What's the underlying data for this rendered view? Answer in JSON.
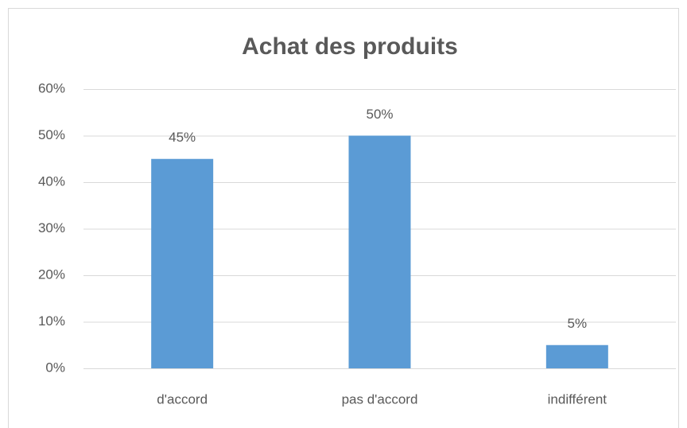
{
  "chart_data": {
    "type": "bar",
    "title": "Achat des produits",
    "categories": [
      "d'accord",
      "pas d'accord",
      "indifférent"
    ],
    "values": [
      45,
      50,
      5
    ],
    "value_labels": [
      "45%",
      "50%",
      "5%"
    ],
    "color": "#5b9bd5",
    "ylim": [
      0,
      60
    ],
    "yticks": [
      {
        "value": 0,
        "label": "0%"
      },
      {
        "value": 10,
        "label": "10%"
      },
      {
        "value": 20,
        "label": "20%"
      },
      {
        "value": 30,
        "label": "30%"
      },
      {
        "value": 40,
        "label": "40%"
      },
      {
        "value": 50,
        "label": "50%"
      },
      {
        "value": 60,
        "label": "60%"
      }
    ],
    "grid": true
  }
}
